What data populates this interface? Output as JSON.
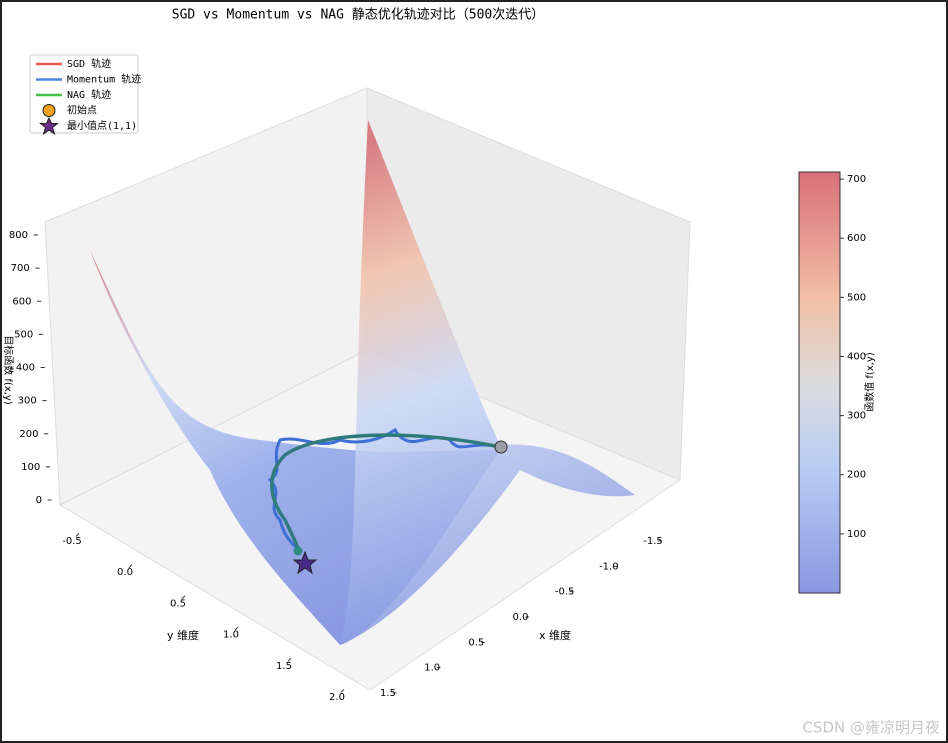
{
  "chart_data": {
    "type": "surface3d",
    "title": "SGD vs Momentum vs NAG 静态优化轨迹对比（500次迭代）",
    "xlabel": "x 维度",
    "ylabel": "y 维度",
    "zlabel": "目标函数 f(x,y)",
    "xlim": [
      -1.5,
      1.5
    ],
    "xticks": [
      -1.5,
      {
        "value": -1.0,
        "label": "-1.0"
      },
      -0.5,
      {
        "value": 0,
        "label": "0.0"
      },
      0.5,
      {
        "value": 1.0,
        "label": "1.0"
      },
      1.5
    ],
    "ylim": [
      -0.5,
      2.0
    ],
    "yticks": [
      -0.5,
      {
        "value": 0,
        "label": "0.0"
      },
      0.5,
      {
        "value": 1.0,
        "label": "1.0"
      },
      1.5,
      {
        "value": 2.0,
        "label": "2.0"
      }
    ],
    "zlim": [
      0,
      800
    ],
    "zticks": [
      0,
      100,
      200,
      300,
      400,
      500,
      600,
      700,
      800
    ],
    "colorbar": {
      "label": "函数值 f(x,y)",
      "lim": [
        0,
        712
      ],
      "ticks": [
        100,
        200,
        300,
        400,
        500,
        600,
        700
      ]
    },
    "legend": [
      {
        "name": "SGD 轨迹",
        "color": "#e8584f",
        "marker": "line"
      },
      {
        "name": "Momentum 轨迹",
        "color": "#4f86e0",
        "marker": "line"
      },
      {
        "name": "NAG 轨迹",
        "color": "#45c048",
        "marker": "line"
      },
      {
        "name": "初始点",
        "color": "#f5a21b",
        "marker": "circle"
      },
      {
        "name": "最小值点(1,1)",
        "color": "#6a2a8a",
        "marker": "star"
      }
    ],
    "watermark": "CSDN @雍凉明月夜"
  }
}
